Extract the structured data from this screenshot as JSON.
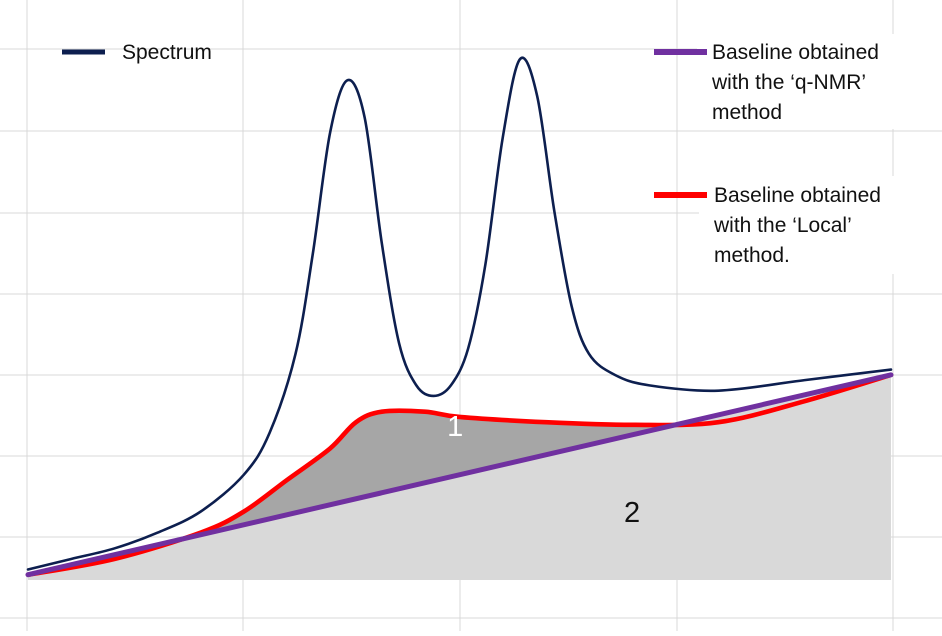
{
  "chart_data": {
    "type": "area",
    "title": "",
    "xlabel": "",
    "ylabel": "",
    "x_range": [
      0,
      100
    ],
    "y_range": [
      0,
      100
    ],
    "grid": true,
    "legend_placement": "top",
    "series": [
      {
        "key": "spectrum",
        "name": "Spectrum",
        "color": "#0d1f4f",
        "points": [
          [
            0,
            2
          ],
          [
            5,
            4
          ],
          [
            10,
            6
          ],
          [
            15,
            9
          ],
          [
            20,
            13
          ],
          [
            25,
            20
          ],
          [
            28,
            28
          ],
          [
            31,
            43
          ],
          [
            33,
            62
          ],
          [
            35,
            85
          ],
          [
            37,
            95
          ],
          [
            39,
            88
          ],
          [
            41,
            64
          ],
          [
            43,
            45
          ],
          [
            45,
            37
          ],
          [
            47,
            35
          ],
          [
            49,
            37
          ],
          [
            51,
            44
          ],
          [
            53,
            60
          ],
          [
            55,
            84
          ],
          [
            57,
            99
          ],
          [
            59,
            92
          ],
          [
            61,
            70
          ],
          [
            63,
            52
          ],
          [
            65,
            43
          ],
          [
            68,
            39
          ],
          [
            72,
            37
          ],
          [
            80,
            36
          ],
          [
            90,
            38
          ],
          [
            100,
            40
          ]
        ]
      },
      {
        "key": "local",
        "name": "Baseline obtained with the ‘Local’ method.",
        "color": "#ff0000",
        "points": [
          [
            0,
            1
          ],
          [
            10,
            4
          ],
          [
            20,
            9
          ],
          [
            25,
            13
          ],
          [
            30,
            19
          ],
          [
            35,
            25
          ],
          [
            38,
            30
          ],
          [
            41,
            32
          ],
          [
            46,
            32
          ],
          [
            50,
            31
          ],
          [
            60,
            30
          ],
          [
            70,
            29.5
          ],
          [
            80,
            30
          ],
          [
            90,
            34
          ],
          [
            100,
            39
          ]
        ]
      },
      {
        "key": "qnmr",
        "name": "Baseline obtained with the ‘q-NMR’ method",
        "color": "#7030a0",
        "points": [
          [
            0,
            1
          ],
          [
            100,
            39
          ]
        ]
      }
    ],
    "regions": [
      {
        "label": "1",
        "between": [
          "local",
          "qnmr"
        ],
        "fill": "#a6a6a6",
        "label_color": "#ffffff",
        "label_at": [
          49.5,
          28.8
        ]
      },
      {
        "label": "2",
        "between": [
          "qnmr",
          "axis"
        ],
        "fill": "#d9d9d9",
        "label_color": "#111111",
        "label_at": [
          70,
          12.5
        ]
      }
    ],
    "legend": [
      {
        "series": "spectrum",
        "lines": [
          "Spectrum"
        ]
      },
      {
        "series": "qnmr",
        "lines": [
          "Baseline obtained",
          "with the ‘q-NMR’",
          "method"
        ]
      },
      {
        "series": "local",
        "lines": [
          "Baseline obtained",
          "with the ‘Local’",
          "method."
        ]
      }
    ]
  }
}
